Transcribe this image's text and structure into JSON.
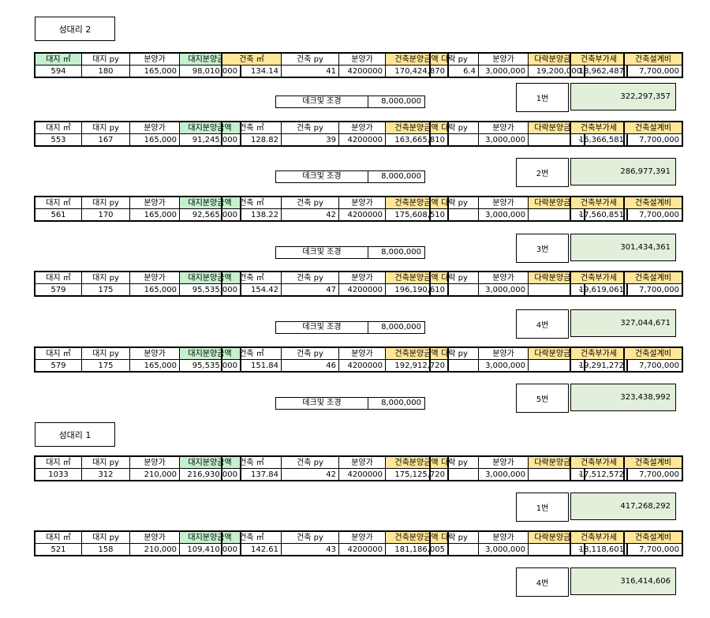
{
  "sections": [
    {
      "title": "성대리 2"
    },
    {
      "title": "성대리 1"
    }
  ],
  "headers": {
    "land_m2": "대지 ㎡",
    "land_py": "대지 py",
    "land_price": "분양가",
    "land_amount": "대지분양금액",
    "bld_m2": "건축 ㎡",
    "bld_py": "건축 py",
    "bld_price": "분양가",
    "bld_amount": "건축분양금액",
    "attic_py": "다락 py",
    "attic_price": "분양가",
    "attic_amount": "다락분양금액",
    "vat": "건축부가세",
    "design": "건축설계비"
  },
  "headers_first": {
    "land_m2": "대지 ㎡",
    "bld_m2": "건축 ㎡"
  },
  "deck_label": "데크및 조경",
  "rows": [
    {
      "land_m2": "594",
      "land_py": "180",
      "land_price": "165,000",
      "land_amount": "98,010,000",
      "bld_m2": "134.14",
      "bld_py": "41",
      "bld_price": "4200000",
      "bld_amount": "170,424,870",
      "attic_py": "6.4",
      "attic_price": "3,000,000",
      "attic_amount": "19,200,000",
      "vat": "18,962,487",
      "design": "7,700,000",
      "deck": "8,000,000",
      "unit": "1번",
      "total": "322,297,357"
    },
    {
      "land_m2": "553",
      "land_py": "167",
      "land_price": "165,000",
      "land_amount": "91,245,000",
      "bld_m2": "128.82",
      "bld_py": "39",
      "bld_price": "4200000",
      "bld_amount": "163,665,810",
      "attic_py": "",
      "attic_price": "3,000,000",
      "attic_amount": "-",
      "vat": "16,366,581",
      "design": "7,700,000",
      "deck": "8,000,000",
      "unit": "2번",
      "total": "286,977,391"
    },
    {
      "land_m2": "561",
      "land_py": "170",
      "land_price": "165,000",
      "land_amount": "92,565,000",
      "bld_m2": "138.22",
      "bld_py": "42",
      "bld_price": "4200000",
      "bld_amount": "175,608,510",
      "attic_py": "",
      "attic_price": "3,000,000",
      "attic_amount": "-",
      "vat": "17,560,851",
      "design": "7,700,000",
      "deck": "8,000,000",
      "unit": "3번",
      "total": "301,434,361"
    },
    {
      "land_m2": "579",
      "land_py": "175",
      "land_price": "165,000",
      "land_amount": "95,535,000",
      "bld_m2": "154.42",
      "bld_py": "47",
      "bld_price": "4200000",
      "bld_amount": "196,190,610",
      "attic_py": "",
      "attic_price": "3,000,000",
      "attic_amount": "-",
      "vat": "19,619,061",
      "design": "7,700,000",
      "deck": "8,000,000",
      "unit": "4번",
      "total": "327,044,671"
    },
    {
      "land_m2": "579",
      "land_py": "175",
      "land_price": "165,000",
      "land_amount": "95,535,000",
      "bld_m2": "151.84",
      "bld_py": "46",
      "bld_price": "4200000",
      "bld_amount": "192,912,720",
      "attic_py": "",
      "attic_price": "3,000,000",
      "attic_amount": "-",
      "vat": "19,291,272",
      "design": "7,700,000",
      "deck": "8,000,000",
      "unit": "5번",
      "total": "323,438,992"
    },
    {
      "land_m2": "1033",
      "land_py": "312",
      "land_price": "210,000",
      "land_amount": "216,930,000",
      "bld_m2": "137.84",
      "bld_py": "42",
      "bld_price": "4200000",
      "bld_amount": "175,125,720",
      "attic_py": "",
      "attic_price": "3,000,000",
      "attic_amount": "-",
      "vat": "17,512,572",
      "design": "7,700,000",
      "unit": "1번",
      "total": "417,268,292"
    },
    {
      "land_m2": "521",
      "land_py": "158",
      "land_price": "210,000",
      "land_amount": "109,410,000",
      "bld_m2": "142.61",
      "bld_py": "43",
      "bld_price": "4200000",
      "bld_amount": "181,186,005",
      "attic_py": "",
      "attic_price": "3,000,000",
      "attic_amount": "-",
      "vat": "18,118,601",
      "design": "7,700,000",
      "unit": "4번",
      "total": "316,414,606"
    }
  ],
  "colors": {
    "green_header": "#c6efce",
    "yellow_header": "#ffe699",
    "total_fill": "#e2efda"
  }
}
